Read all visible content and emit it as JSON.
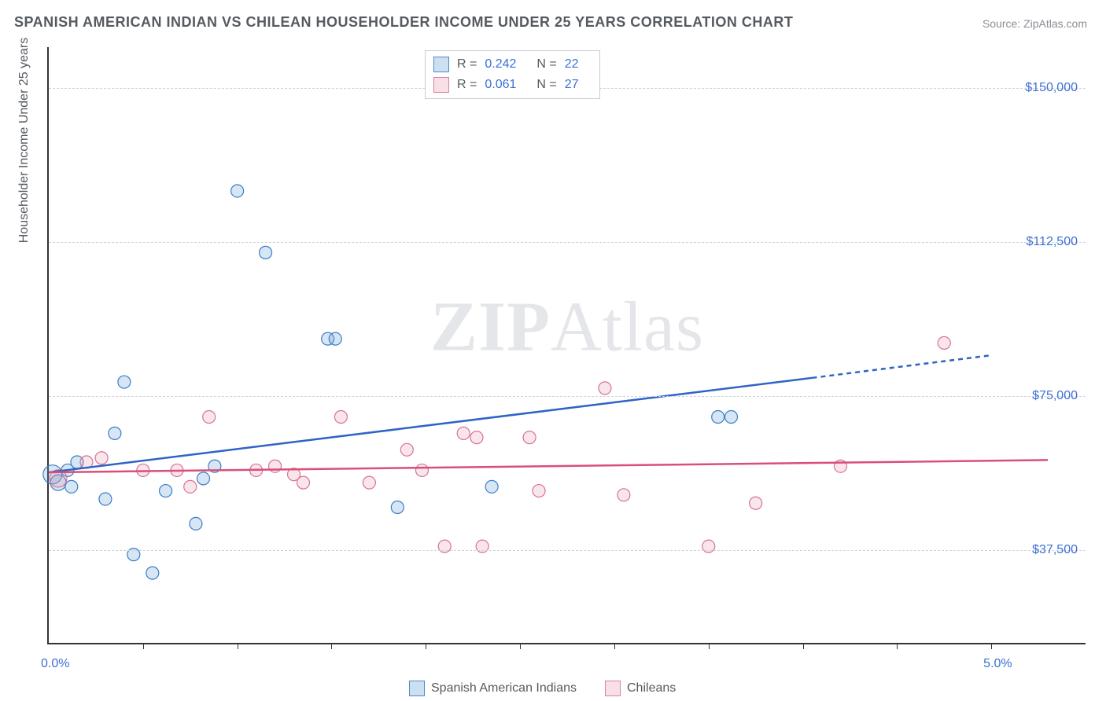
{
  "title": "SPANISH AMERICAN INDIAN VS CHILEAN HOUSEHOLDER INCOME UNDER 25 YEARS CORRELATION CHART",
  "source_label": "Source: ZipAtlas.com",
  "y_axis_title": "Householder Income Under 25 years",
  "watermark_bold": "ZIP",
  "watermark_rest": "Atlas",
  "chart": {
    "type": "scatter",
    "background_color": "#ffffff",
    "grid_color": "#d0d4d9",
    "axis_color": "#333333",
    "xlim": [
      0,
      5.5
    ],
    "ylim": [
      15000,
      160000
    ],
    "x_tick_positions": [
      0.5,
      1.0,
      1.5,
      2.0,
      2.5,
      3.0,
      3.5,
      4.0,
      4.5,
      5.0
    ],
    "x_axis_labels": [
      {
        "x": 0.0,
        "text": "0.0%"
      },
      {
        "x": 5.0,
        "text": "5.0%"
      }
    ],
    "y_gridlines": [
      37500,
      75000,
      112500,
      150000
    ],
    "y_tick_labels": [
      "$37,500",
      "$75,000",
      "$112,500",
      "$150,000"
    ],
    "title_fontsize": 18,
    "label_fontsize": 16,
    "tick_fontsize": 16,
    "marker_radius_default": 8,
    "marker_fill_opacity": 0.25,
    "marker_stroke_width": 1.2,
    "series": [
      {
        "name": "Spanish American Indians",
        "color": "#5e9ad6",
        "stroke": "#3b7ec2",
        "R_label": "R =",
        "R_value": "0.242",
        "N_label": "N =",
        "N_value": "22",
        "trend": {
          "solid": {
            "x1": 0.0,
            "y1": 56500,
            "x2": 4.05,
            "y2": 79500
          },
          "dashed": {
            "x1": 4.05,
            "y1": 79500,
            "x2": 5.0,
            "y2": 85000
          },
          "color": "#2f63c4",
          "width": 2.5
        },
        "points": [
          {
            "x": 0.02,
            "y": 56000,
            "r": 12
          },
          {
            "x": 0.05,
            "y": 54000,
            "r": 10
          },
          {
            "x": 0.1,
            "y": 57000
          },
          {
            "x": 0.12,
            "y": 53000
          },
          {
            "x": 0.15,
            "y": 59000
          },
          {
            "x": 0.3,
            "y": 50000
          },
          {
            "x": 0.35,
            "y": 66000
          },
          {
            "x": 0.4,
            "y": 78500
          },
          {
            "x": 0.45,
            "y": 36500
          },
          {
            "x": 0.55,
            "y": 32000
          },
          {
            "x": 0.62,
            "y": 52000
          },
          {
            "x": 0.78,
            "y": 44000
          },
          {
            "x": 0.82,
            "y": 55000
          },
          {
            "x": 0.88,
            "y": 58000
          },
          {
            "x": 1.0,
            "y": 125000
          },
          {
            "x": 1.15,
            "y": 110000
          },
          {
            "x": 1.48,
            "y": 89000
          },
          {
            "x": 1.52,
            "y": 89000
          },
          {
            "x": 1.85,
            "y": 48000
          },
          {
            "x": 2.35,
            "y": 53000
          },
          {
            "x": 3.55,
            "y": 70000
          },
          {
            "x": 3.62,
            "y": 70000
          }
        ]
      },
      {
        "name": "Chileans",
        "color": "#e89ab0",
        "stroke": "#d77394",
        "R_label": "R =",
        "R_value": "0.061",
        "N_label": "N =",
        "N_value": "27",
        "trend": {
          "solid": {
            "x1": 0.0,
            "y1": 56500,
            "x2": 5.3,
            "y2": 59500
          },
          "dashed": null,
          "color": "#d94f7a",
          "width": 2.5
        },
        "points": [
          {
            "x": 0.05,
            "y": 55000,
            "r": 11
          },
          {
            "x": 0.2,
            "y": 59000
          },
          {
            "x": 0.28,
            "y": 60000
          },
          {
            "x": 0.5,
            "y": 57000
          },
          {
            "x": 0.68,
            "y": 57000
          },
          {
            "x": 0.75,
            "y": 53000
          },
          {
            "x": 0.85,
            "y": 70000
          },
          {
            "x": 1.1,
            "y": 57000
          },
          {
            "x": 1.2,
            "y": 58000
          },
          {
            "x": 1.3,
            "y": 56000
          },
          {
            "x": 1.35,
            "y": 54000
          },
          {
            "x": 1.55,
            "y": 70000
          },
          {
            "x": 1.7,
            "y": 54000
          },
          {
            "x": 1.9,
            "y": 62000
          },
          {
            "x": 1.98,
            "y": 57000
          },
          {
            "x": 2.1,
            "y": 38500
          },
          {
            "x": 2.2,
            "y": 66000
          },
          {
            "x": 2.27,
            "y": 65000
          },
          {
            "x": 2.3,
            "y": 38500
          },
          {
            "x": 2.55,
            "y": 65000
          },
          {
            "x": 2.6,
            "y": 52000
          },
          {
            "x": 2.95,
            "y": 77000
          },
          {
            "x": 3.05,
            "y": 51000
          },
          {
            "x": 3.5,
            "y": 38500
          },
          {
            "x": 3.75,
            "y": 49000
          },
          {
            "x": 4.2,
            "y": 58000
          },
          {
            "x": 4.75,
            "y": 88000
          }
        ]
      }
    ]
  }
}
